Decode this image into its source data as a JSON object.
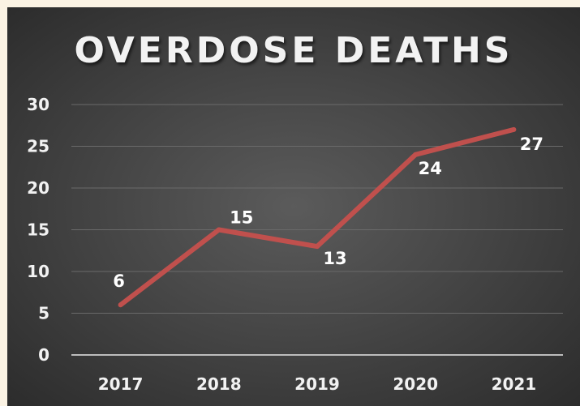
{
  "chart_data": {
    "type": "line",
    "title": "OVERDOSE DEATHS",
    "xlabel": "",
    "ylabel": "",
    "categories": [
      "2017",
      "2018",
      "2019",
      "2020",
      "2021"
    ],
    "values": [
      6,
      15,
      13,
      24,
      27
    ],
    "data_labels": [
      "6",
      "15",
      "13",
      "24",
      "27"
    ],
    "ylim": [
      0,
      30
    ],
    "yticks": [
      "0",
      "5",
      "10",
      "15",
      "20",
      "25",
      "30"
    ],
    "grid": true,
    "legend": "none",
    "colors": {
      "line": "#c0504d",
      "grid": "#6a6a6a",
      "axis": "#bdbdbd",
      "text": "#f2f2f2"
    }
  }
}
